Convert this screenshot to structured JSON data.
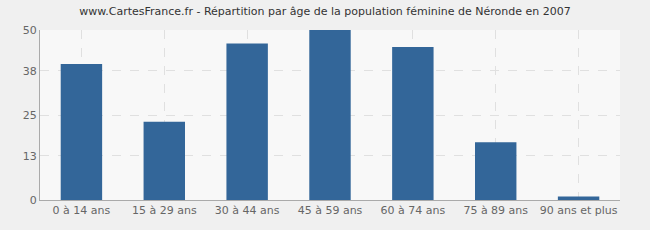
{
  "chart_data": {
    "type": "bar",
    "title": "www.CartesFrance.fr - Répartition par âge de la population féminine de Néronde en 2007",
    "categories": [
      "0 à 14 ans",
      "15 à 29 ans",
      "30 à 44 ans",
      "45 à 59 ans",
      "60 à 74 ans",
      "75 à 89 ans",
      "90 ans et plus"
    ],
    "values": [
      40,
      23,
      46,
      50,
      45,
      17,
      1
    ],
    "color": "#336699",
    "ylim": [
      0,
      50
    ],
    "yticks": [
      0,
      13,
      25,
      38,
      50
    ],
    "grid": true
  }
}
